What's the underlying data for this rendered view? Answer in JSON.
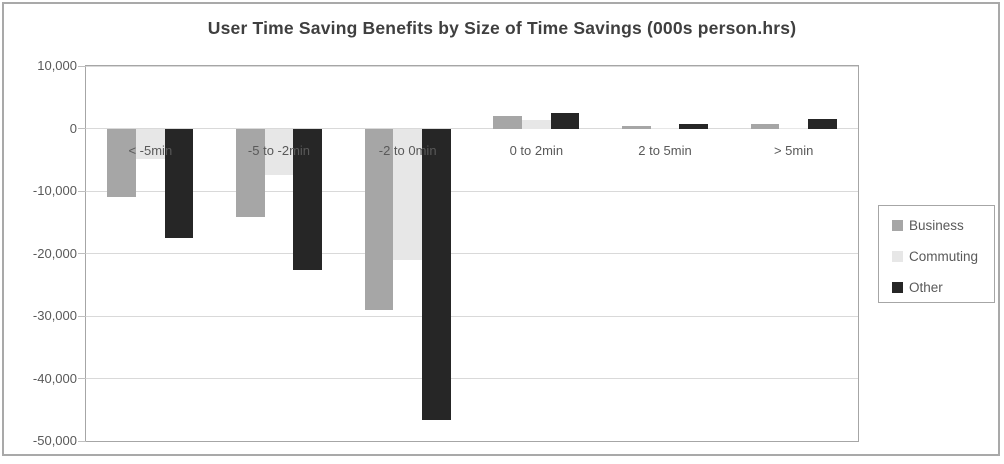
{
  "title": "User Time Saving Benefits by Size of Time Savings (000s person.hrs)",
  "chart_data": {
    "type": "bar",
    "title": "User Time Saving Benefits by Size of Time Savings (000s person.hrs)",
    "categories": [
      "< -5min",
      "-5 to -2min",
      "-2 to 0min",
      "0 to 2min",
      "2 to 5min",
      "> 5min"
    ],
    "series": [
      {
        "name": "Business",
        "color": "#a6a6a6",
        "values": [
          -11000,
          -14200,
          -29000,
          2000,
          400,
          800
        ]
      },
      {
        "name": "Commuting",
        "color": "#e7e7e7",
        "values": [
          -4800,
          -7400,
          -21000,
          1400,
          100,
          100
        ]
      },
      {
        "name": "Other",
        "color": "#262626",
        "values": [
          -17500,
          -22700,
          -46700,
          2500,
          700,
          1500
        ]
      }
    ],
    "xlabel": "",
    "ylabel": "",
    "ylim": [
      -50000,
      10000
    ],
    "yticks": [
      10000,
      0,
      -10000,
      -20000,
      -30000,
      -40000,
      -50000
    ],
    "ytick_labels": [
      "10,000",
      "0",
      "-10,000",
      "-20,000",
      "-30,000",
      "-40,000",
      "-50,000"
    ],
    "grid": true,
    "legend_position": "right",
    "bar_grouping": "clustered"
  },
  "colors": {
    "frame_border": "#a9a9a9",
    "plot_border": "#a6a6a6",
    "gridline": "#d9d9d9",
    "tick": "#bfbfbf",
    "axis_text": "#595959",
    "title_text": "#3f3f3f",
    "background": "#ffffff"
  }
}
